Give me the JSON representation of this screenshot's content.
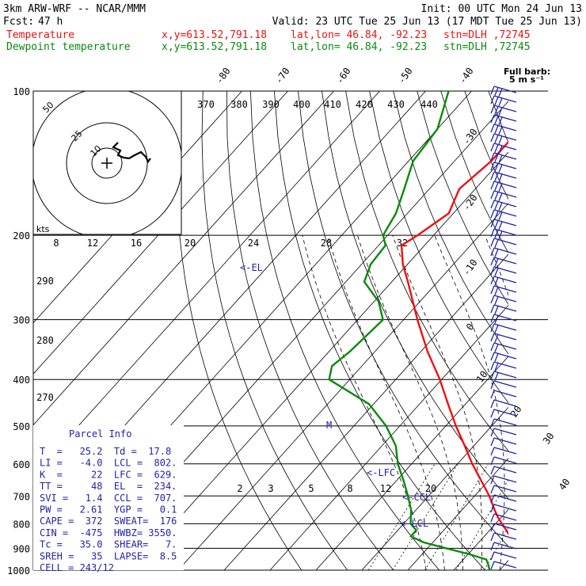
{
  "header": {
    "model": "3km ARW-WRF -- NCAR/MMM",
    "init": "Init: 00 UTC Mon 24 Jun 13",
    "fcst_label": "Fcst:",
    "fcst_value": "47 h",
    "valid": "Valid: 23 UTC Tue 25 Jun 13 (17 MDT Tue 25 Jun 13)",
    "temp_label": "Temperature",
    "dew_label": "Dewpoint temperature",
    "temp_xy": "x,y=613.52,791.18",
    "temp_latlon": "lat,lon= 46.84, -92.23",
    "temp_stn": "stn=DLH ,72745",
    "dew_xy": "x,y=613.52,791.18",
    "dew_latlon": "lat,lon= 46.84, -92.23",
    "dew_stn": "stn=DLH ,72745"
  },
  "colors": {
    "temperature": "#ee1111",
    "dewpoint": "#0a8a0a",
    "barbs": "#2222aa",
    "text": "#000000"
  },
  "barb_legend": {
    "line1": "Full barb:",
    "line2": "5 m s⁻¹"
  },
  "hodograph": {
    "kts_label": "kts",
    "ring_labels": [
      "10",
      "25",
      "50"
    ]
  },
  "parcel_info": {
    "title": "Parcel Info",
    "rows": [
      "T  =   25.2  Td =  17.8",
      "LI =   -4.0  LCL =  802.",
      "K  =     22  LFC =  629.",
      "TT =     48  EL  =  234.",
      "SVI =   1.4  CCL =  707.",
      "PW =   2.61  YGP =   0.1",
      "CAPE =  372  SWEAT=  176",
      "CIN =  -475  HWBZ= 3550.",
      "Tc =   35.0  SHEAR=   7.",
      "SREH =   35  LAPSE=  8.5",
      "CELL = 243/12"
    ]
  },
  "level_markers": {
    "el": "<-EL",
    "lfc": "<-LFC",
    "ccl": "<-CCL",
    "lcl": "<-LCL",
    "m": "M"
  },
  "chart_data": {
    "type": "line",
    "title": "Skew-T log-P diagram",
    "pressure_levels": [
      100,
      200,
      300,
      400,
      500,
      600,
      700,
      800,
      900,
      1000
    ],
    "isotherm_labels": [
      "-80",
      "-70",
      "-60",
      "-50",
      "-40",
      "-30",
      "-20",
      "-10",
      "0",
      "10",
      "20",
      "30",
      "40"
    ],
    "theta_e_labels": [
      "370",
      "380",
      "390",
      "400",
      "410",
      "420",
      "430",
      "440"
    ],
    "mixing_ratio_labels_top": [
      "8",
      "12",
      "16",
      "20",
      "24",
      "28",
      "32"
    ],
    "mixing_ratio_labels_low": [
      "2",
      "3",
      "5",
      "8",
      "12",
      "20"
    ],
    "theta_labels": [
      "290",
      "280",
      "270"
    ],
    "series": [
      {
        "name": "Temperature",
        "pressure": [
          1000,
          975,
          950,
          925,
          900,
          875,
          850,
          825,
          800,
          775,
          750,
          700,
          650,
          600,
          550,
          500,
          450,
          400,
          350,
          300,
          250,
          230,
          210,
          200,
          180,
          160,
          140,
          120,
          100
        ],
        "values": [
          25.2,
          23.5,
          22.0,
          20.6,
          19.4,
          17.6,
          15.6,
          13.6,
          11.4,
          9.2,
          7.2,
          3.2,
          -1.6,
          -6.8,
          -12.0,
          -17.8,
          -23.8,
          -30.4,
          -38.5,
          -47.0,
          -56.5,
          -61.0,
          -65.0,
          -63.5,
          -61.0,
          -63.5,
          -62.0,
          -62.0,
          -63.0
        ]
      },
      {
        "name": "Dewpoint temperature",
        "pressure": [
          1000,
          975,
          950,
          925,
          900,
          875,
          850,
          825,
          800,
          750,
          700,
          650,
          600,
          550,
          500,
          450,
          400,
          375,
          350,
          325,
          300,
          275,
          250,
          230,
          210,
          200,
          180,
          160,
          140,
          120,
          100
        ],
        "values": [
          17.8,
          16.5,
          15.0,
          10.0,
          4.0,
          -2.0,
          -6.0,
          -6.0,
          -8.5,
          -11.0,
          -14.5,
          -18.5,
          -23.0,
          -27.0,
          -33.0,
          -41.0,
          -54.5,
          -56.5,
          -55.5,
          -55.0,
          -54.5,
          -59.0,
          -66.0,
          -68.0,
          -68.5,
          -71.0,
          -72.5,
          -75.5,
          -79.0,
          -80.0,
          -85.0
        ]
      }
    ]
  }
}
